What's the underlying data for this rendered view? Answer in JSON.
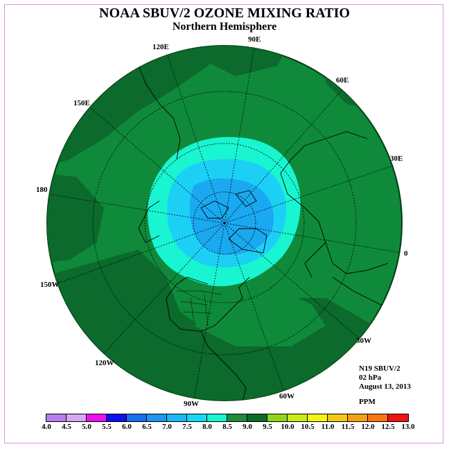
{
  "title": "NOAA SBUV/2 OZONE MIXING RATIO",
  "subtitle": "Northern Hemisphere",
  "longitude_labels": [
    "90E",
    "60E",
    "30E",
    "0",
    "30W",
    "60W",
    "90W",
    "120W",
    "150W",
    "180",
    "150E",
    "120E"
  ],
  "info": {
    "instrument": "N19 SBUV/2",
    "level": "02 hPa",
    "date": "August 13, 2013"
  },
  "units": "PPM",
  "colorbar": {
    "ticks": [
      "4.0",
      "4.5",
      "5.0",
      "5.5",
      "6.0",
      "6.5",
      "7.0",
      "7.5",
      "8.0",
      "8.5",
      "9.0",
      "9.5",
      "10.0",
      "10.5",
      "11.0",
      "11.5",
      "12.0",
      "12.5",
      "13.0"
    ],
    "colors": [
      "#b87cf0",
      "#d9a6f0",
      "#ee10ee",
      "#1010ee",
      "#1a6ef0",
      "#1d97f0",
      "#1cb8f5",
      "#18d8f8",
      "#19f5d0",
      "#1e8c3a",
      "#0d6b2a",
      "#8fd61a",
      "#c8ec1a",
      "#f5f514",
      "#f5c814",
      "#f5a014",
      "#f57814",
      "#f01414",
      "#8b5a3c"
    ]
  },
  "map": {
    "field_colors": {
      "8.5_9.0": "#0f8a3a",
      "9.0_plus": "#0b6a2c",
      "8.0_8.5": "#19f5d0",
      "7.5_8.0": "#1cd0f5",
      "7.0_7.5": "#1aa8f0"
    }
  }
}
